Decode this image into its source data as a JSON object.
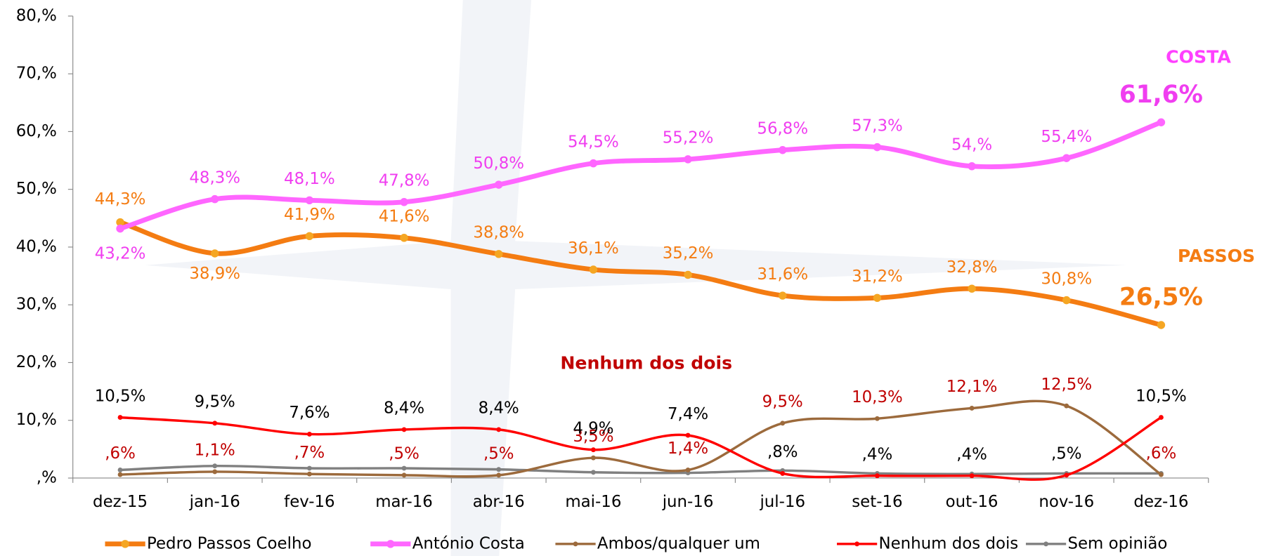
{
  "chart_data": {
    "type": "line",
    "categories": [
      "dez-15",
      "jan-16",
      "fev-16",
      "mar-16",
      "abr-16",
      "mai-16",
      "jun-16",
      "jul-16",
      "set-16",
      "out-16",
      "nov-16",
      "dez-16"
    ],
    "ylim": [
      0,
      80
    ],
    "yticks": [
      {
        "value": 0,
        "label": ",%"
      },
      {
        "value": 10,
        "label": "10,%"
      },
      {
        "value": 20,
        "label": "20,%"
      },
      {
        "value": 30,
        "label": "30,%"
      },
      {
        "value": 40,
        "label": "40,%"
      },
      {
        "value": 50,
        "label": "50,%"
      },
      {
        "value": 60,
        "label": "60,%"
      },
      {
        "value": 70,
        "label": "70,%"
      },
      {
        "value": 80,
        "label": "80,%"
      }
    ],
    "series": [
      {
        "name": "Pedro Passos Coelho",
        "color": "#f47c12",
        "label_color": "#f47c12",
        "values": [
          44.3,
          38.9,
          41.9,
          41.6,
          38.8,
          36.1,
          35.2,
          31.6,
          31.2,
          32.8,
          30.8,
          26.5
        ],
        "value_labels": [
          "44,3%",
          "38,9%",
          "41,9%",
          "41,6%",
          "38,8%",
          "36,1%",
          "35,2%",
          "31,6%",
          "31,2%",
          "32,8%",
          "30,8%",
          "26,5%"
        ]
      },
      {
        "name": "António Costa",
        "color": "#ff66ff",
        "label_color": "#f03ef0",
        "values": [
          43.2,
          48.3,
          48.1,
          47.8,
          50.8,
          54.5,
          55.2,
          56.8,
          57.3,
          54,
          55.4,
          61.6
        ],
        "value_labels": [
          "43,2%",
          "48,3%",
          "48,1%",
          "47,8%",
          "50,8%",
          "54,5%",
          "55,2%",
          "56,8%",
          "57,3%",
          "54,%",
          "55,4%",
          "61,6%"
        ]
      },
      {
        "name": "Ambos/qualquer um",
        "color": "#9c6a3c",
        "label_color": "#c00000",
        "values": [
          0.6,
          1.1,
          0.7,
          0.5,
          0.5,
          3.5,
          1.4,
          9.5,
          10.3,
          12.1,
          12.5,
          0.6
        ],
        "value_labels": [
          ",6%",
          "1,1%",
          ",7%",
          ",5%",
          ",5%",
          "3,5%",
          "1,4%",
          "9,5%",
          "10,3%",
          "12,1%",
          "12,5%",
          ",6%"
        ]
      },
      {
        "name": "Nenhum dos dois",
        "color": "#ff0000",
        "label_color": "#000000",
        "values": [
          10.5,
          9.5,
          7.6,
          8.4,
          8.4,
          4.9,
          7.4,
          0.8,
          0.4,
          0.4,
          0.5,
          10.5
        ],
        "value_labels": [
          "10,5%",
          "9,5%",
          "7,6%",
          "8,4%",
          "8,4%",
          "4,9%",
          "7,4%",
          ",8%",
          ",4%",
          ",4%",
          ",5%",
          "10,5%"
        ]
      },
      {
        "name": "Sem opinião",
        "color": "#808080",
        "values": [
          1.4,
          2.1,
          1.7,
          1.7,
          1.5,
          1.0,
          0.9,
          1.3,
          0.8,
          0.7,
          0.8,
          0.8
        ]
      }
    ],
    "annotations": [
      "COSTA",
      "PASSOS",
      "Nenhum dos dois"
    ]
  }
}
